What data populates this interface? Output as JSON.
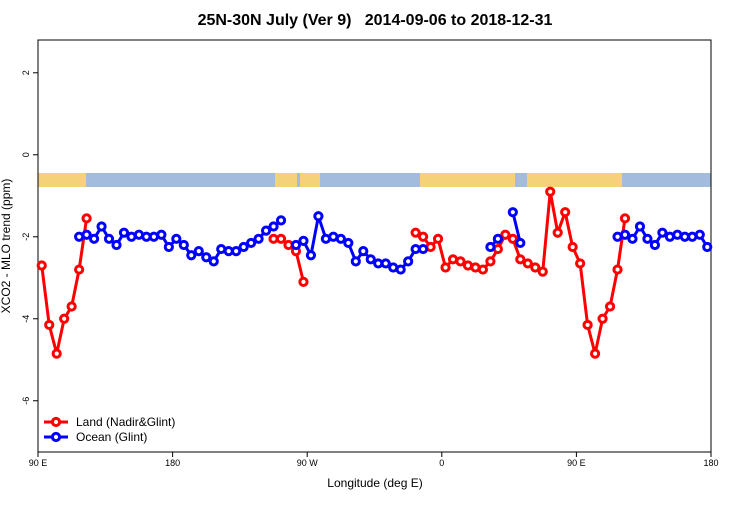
{
  "chart_data": {
    "type": "line",
    "title": "25N-30N July (Ver 9)   2014-09-06 to 2018-12-31",
    "x_label": "Longitude (deg E)",
    "y_label": "XCO2 - MLO trend (ppm)",
    "xlim": [
      90,
      540
    ],
    "ylim": [
      -7.25,
      2.8
    ],
    "xticks": [
      {
        "value": 90,
        "label": "90 E"
      },
      180,
      {
        "value": 270,
        "label": "90 W"
      },
      {
        "value": 360,
        "label": "0"
      },
      {
        "value": 450,
        "label": "90 E"
      },
      {
        "value": 540,
        "label": "180"
      }
    ],
    "yticks": [
      -6,
      -4,
      -2,
      0,
      2
    ],
    "legend": "bottom-left",
    "series": [
      {
        "name": "Land (Nadir&Glint)",
        "color": "#ff0000",
        "x": [
          92.5,
          97.5,
          102.5,
          107.5,
          112.5,
          117.5,
          122.5,
          185,
          247.5,
          252.5,
          257.5,
          262.5,
          267.5,
          305,
          342.5,
          347.5,
          352.5,
          357.5,
          362.5,
          367.5,
          372.5,
          377.5,
          382.5,
          387.5,
          392.5,
          397.5,
          402.5,
          407.5,
          412.5,
          417.5,
          422.5,
          427.5,
          432.5,
          437.5,
          442.5,
          447.5,
          452.5,
          457.5,
          462.5,
          467.5,
          472.5,
          477.5,
          482.5
        ],
        "values": [
          -2.7,
          -4.15,
          -4.85,
          -4.0,
          -3.7,
          -2.8,
          -1.55,
          null,
          -2.05,
          -2.05,
          -2.2,
          -2.35,
          -3.1,
          null,
          -1.9,
          -2.0,
          -2.25,
          -2.05,
          -2.75,
          -2.55,
          -2.6,
          -2.7,
          -2.75,
          -2.8,
          -2.6,
          -2.3,
          -1.95,
          -2.05,
          -2.55,
          -2.65,
          -2.75,
          -2.85,
          -0.9,
          -1.9,
          -1.4,
          -2.25,
          -2.65,
          -4.15,
          -4.85,
          -4.0,
          -3.7,
          -2.8,
          -1.55
        ]
      },
      {
        "name": "Ocean (Glint)",
        "color": "#0000ff",
        "x": [
          117.5,
          122.5,
          127.5,
          132.5,
          137.5,
          142.5,
          147.5,
          152.5,
          157.5,
          162.5,
          167.5,
          172.5,
          177.5,
          182.5,
          187.5,
          192.5,
          197.5,
          202.5,
          207.5,
          212.5,
          217.5,
          222.5,
          227.5,
          232.5,
          237.5,
          242.5,
          247.5,
          252.5,
          257.5,
          262.5,
          267.5,
          272.5,
          277.5,
          282.5,
          287.5,
          292.5,
          297.5,
          302.5,
          307.5,
          312.5,
          317.5,
          322.5,
          327.5,
          332.5,
          337.5,
          342.5,
          347.5,
          370,
          392.5,
          397.5,
          402.5,
          407.5,
          412.5,
          445,
          477.5,
          482.5,
          487.5,
          492.5,
          497.5,
          502.5,
          507.5,
          512.5,
          517.5,
          522.5,
          527.5,
          532.5,
          537.5
        ],
        "values": [
          -2.0,
          -1.95,
          -2.05,
          -1.75,
          -2.05,
          -2.2,
          -1.9,
          -2.0,
          -1.95,
          -2.0,
          -2.0,
          -1.95,
          -2.25,
          -2.05,
          -2.2,
          -2.45,
          -2.35,
          -2.5,
          -2.6,
          -2.3,
          -2.35,
          -2.35,
          -2.25,
          -2.15,
          -2.05,
          -1.85,
          -1.75,
          -1.6,
          null,
          -2.2,
          -2.1,
          -2.45,
          -1.5,
          -2.05,
          -2.0,
          -2.05,
          -2.15,
          -2.6,
          -2.35,
          -2.55,
          -2.65,
          -2.65,
          -2.75,
          -2.8,
          -2.6,
          -2.3,
          -2.3,
          null,
          -2.25,
          -2.05,
          null,
          -1.4,
          -2.15,
          null,
          -2.0,
          -1.95,
          -2.05,
          -1.75,
          -2.05,
          -2.2,
          -1.9,
          -2.0,
          -1.95,
          -2.0,
          -2.0,
          -1.95,
          -2.25
        ]
      }
    ]
  }
}
